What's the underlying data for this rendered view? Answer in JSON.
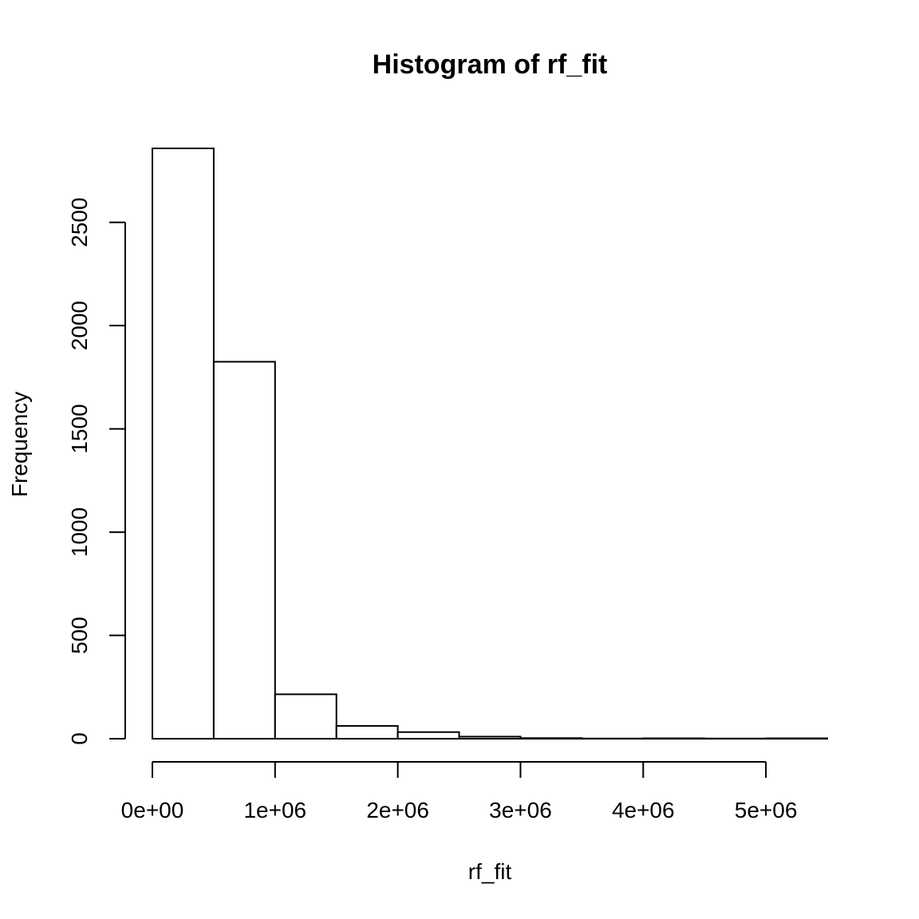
{
  "chart_data": {
    "type": "bar",
    "title": "Histogram of rf_fit",
    "xlabel": "rf_fit",
    "ylabel": "Frequency",
    "bins": [
      {
        "start": 0,
        "end": 500000,
        "count": 2858
      },
      {
        "start": 500000,
        "end": 1000000,
        "count": 1825
      },
      {
        "start": 1000000,
        "end": 1500000,
        "count": 215
      },
      {
        "start": 1500000,
        "end": 2000000,
        "count": 62
      },
      {
        "start": 2000000,
        "end": 2500000,
        "count": 32
      },
      {
        "start": 2500000,
        "end": 3000000,
        "count": 10
      },
      {
        "start": 3000000,
        "end": 3500000,
        "count": 3
      },
      {
        "start": 3500000,
        "end": 4000000,
        "count": 1
      },
      {
        "start": 4000000,
        "end": 4500000,
        "count": 2
      },
      {
        "start": 4500000,
        "end": 5000000,
        "count": 1
      },
      {
        "start": 5000000,
        "end": 5500000,
        "count": 2
      }
    ],
    "xlim": [
      0,
      5500000
    ],
    "ylim": [
      0,
      2858
    ],
    "x_ticks": [
      0,
      1000000,
      2000000,
      3000000,
      4000000,
      5000000
    ],
    "x_tick_labels": [
      "0e+00",
      "1e+06",
      "2e+06",
      "3e+06",
      "4e+06",
      "5e+06"
    ],
    "y_ticks": [
      0,
      500,
      1000,
      1500,
      2000,
      2500
    ],
    "y_tick_labels": [
      "0",
      "500",
      "1000",
      "1500",
      "2000",
      "2500"
    ],
    "grid": false,
    "colors": {
      "bar_fill": "#ffffff",
      "bar_stroke": "#000000"
    }
  }
}
